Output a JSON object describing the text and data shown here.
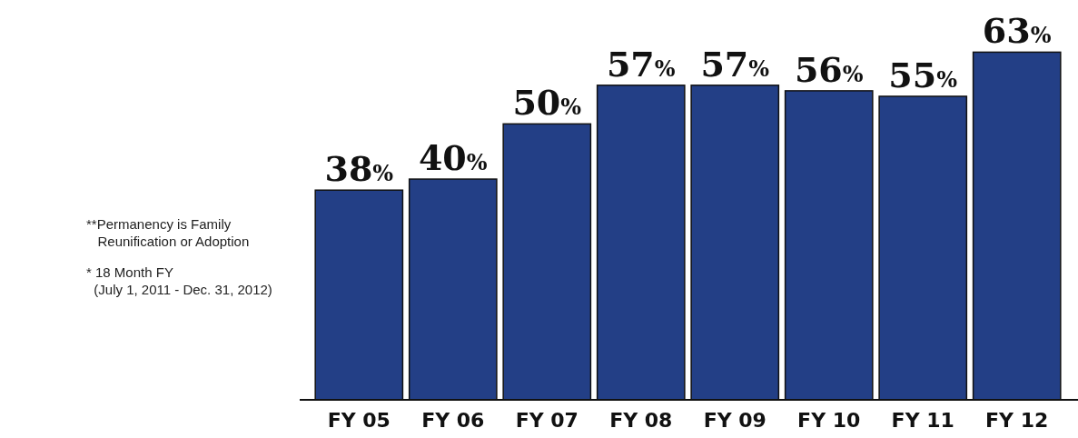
{
  "chart_data": {
    "type": "bar",
    "categories": [
      "FY 05",
      "FY 06",
      "FY 07",
      "FY 08",
      "FY 09",
      "FY 10",
      "FY 11",
      "FY 12"
    ],
    "values": [
      38,
      40,
      50,
      57,
      57,
      56,
      55,
      63
    ],
    "color": "#233f86",
    "value_labels": [
      "38%",
      "40%",
      "50%",
      "57%",
      "57%",
      "56%",
      "55%",
      "63%"
    ],
    "annotations": [
      "**Permanency is Family\n   Reunification or Adoption",
      "* 18 Month FY\n  (July 1, 2011 - Dec. 31, 2012)"
    ]
  }
}
